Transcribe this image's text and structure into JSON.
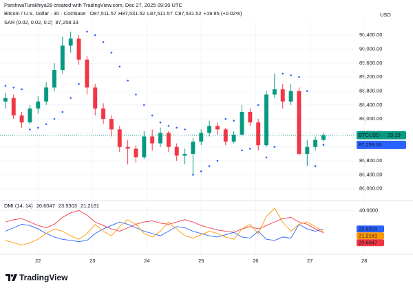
{
  "header": {
    "credit": "ParshwaTurakhiya28 created with TradingView.com, Dec 27, 2025 09:30 UTC",
    "symbol": "Bitcoin / U.S. Dollar · 30 · Coinbase",
    "ohlc": [
      "O87,511.57",
      "H87,531.52",
      "L87,511.57",
      "C87,531.52"
    ],
    "change": "+19.95 (+0.02%)",
    "currency": "USD"
  },
  "chart_data": [
    {
      "type": "candlestick",
      "x": [
        21.4,
        21.55,
        21.7,
        21.85,
        22.0,
        22.15,
        22.3,
        22.45,
        22.6,
        22.75,
        22.9,
        23.05,
        23.2,
        23.35,
        23.5,
        23.65,
        23.8,
        23.95,
        24.1,
        24.25,
        24.4,
        24.55,
        24.7,
        24.85,
        25.0,
        25.15,
        25.3,
        25.45,
        25.6,
        25.75,
        25.9,
        26.05,
        26.2,
        26.35,
        26.5,
        26.65,
        26.8,
        26.95,
        27.1,
        27.25
      ],
      "open": [
        88500,
        88600,
        88100,
        87900,
        88300,
        88500,
        88900,
        89400,
        90100,
        90300,
        89700,
        88900,
        88300,
        88000,
        87700,
        87200,
        87150,
        86900,
        87500,
        87300,
        87600,
        87200,
        86950,
        87000,
        87350,
        87600,
        87800,
        87700,
        87350,
        87550,
        88200,
        87900,
        87250,
        88700,
        88850,
        88500,
        88800,
        87000,
        87200,
        87400
      ],
      "high": [
        88750,
        88700,
        88200,
        88400,
        88650,
        89050,
        89600,
        90350,
        90500,
        90400,
        89800,
        89000,
        88450,
        88100,
        87800,
        87400,
        87250,
        87650,
        87700,
        87750,
        87650,
        87300,
        87150,
        87450,
        87700,
        87950,
        87900,
        87750,
        87650,
        88400,
        88300,
        88000,
        88800,
        89300,
        89000,
        89000,
        88900,
        87400,
        87500,
        87600
      ],
      "low": [
        88300,
        88000,
        87750,
        87850,
        88150,
        88400,
        88800,
        89300,
        89900,
        89550,
        88700,
        88100,
        87850,
        87500,
        87050,
        86700,
        86750,
        86850,
        87100,
        87200,
        87050,
        86800,
        86700,
        86400,
        87250,
        87500,
        87550,
        87250,
        87300,
        87500,
        87800,
        87100,
        87200,
        88600,
        88300,
        88400,
        86950,
        86650,
        87100,
        87350
      ],
      "close": [
        88600,
        88100,
        87900,
        88300,
        88500,
        88900,
        89400,
        90100,
        90300,
        89700,
        88900,
        88300,
        88000,
        87700,
        87200,
        87150,
        86900,
        87500,
        87300,
        87600,
        87200,
        86950,
        87000,
        87350,
        87600,
        87800,
        87700,
        87350,
        87550,
        88200,
        87900,
        87250,
        88700,
        88850,
        88500,
        88800,
        87000,
        87200,
        87400,
        87531.52
      ],
      "up_color": "#089981",
      "down_color": "#f23645",
      "ticker": "BTCUSD",
      "countdown": "29:19",
      "sar": {
        "name": "SAR (0.02, 0.02, 0.2)",
        "color": "#2962ff",
        "last_label": "87,258.33",
        "values": [
          88950,
          88900,
          88850,
          87700,
          87750,
          87850,
          88000,
          88200,
          88600,
          89000,
          90500,
          90400,
          90200,
          89900,
          89500,
          89100,
          88700,
          88400,
          88100,
          87900,
          87800,
          87750,
          87700,
          86400,
          86500,
          86650,
          86800,
          88000,
          87950,
          87100,
          87150,
          88400,
          86900,
          87200,
          89300,
          89250,
          89200,
          88800,
          86650,
          87258.33
        ]
      },
      "xlim": [
        21.3,
        27.82
      ],
      "xticks": [
        22,
        23,
        24,
        25,
        26,
        27,
        28
      ],
      "ylim": [
        85700,
        90620
      ],
      "yticks": [
        {
          "value": 86000,
          "label": "86,000.00"
        },
        {
          "value": 86400,
          "label": "86,400.00"
        },
        {
          "value": 86800,
          "label": "86,800.00"
        },
        {
          "value": 87200,
          "label": "87,200.00"
        },
        {
          "value": 87600,
          "label": "87,600.00"
        },
        {
          "value": 88000,
          "label": "88,000.00"
        },
        {
          "value": 88400,
          "label": "88,400.00"
        },
        {
          "value": 88800,
          "label": "88,800.00"
        },
        {
          "value": 89200,
          "label": "89,200.00"
        },
        {
          "value": 89600,
          "label": "89,600.00"
        },
        {
          "value": 90000,
          "label": "90,000.00"
        },
        {
          "value": 90400,
          "label": "90,400.00"
        }
      ],
      "grid": true
    },
    {
      "type": "line",
      "title": "DMI (14, 14)",
      "x": [
        21.4,
        21.55,
        21.7,
        21.85,
        22.0,
        22.15,
        22.3,
        22.45,
        22.6,
        22.75,
        22.9,
        23.05,
        23.2,
        23.35,
        23.5,
        23.65,
        23.8,
        23.95,
        24.1,
        24.25,
        24.4,
        24.55,
        24.7,
        24.85,
        25.0,
        25.15,
        25.3,
        25.45,
        25.6,
        25.75,
        25.9,
        26.05,
        26.2,
        26.35,
        26.5,
        26.65,
        26.8,
        26.95,
        27.1,
        27.25
      ],
      "series": [
        {
          "color": "#f23645",
          "last_label": "20.6047",
          "values": [
            30,
            32,
            33,
            30,
            27,
            25,
            28,
            34,
            38,
            40,
            36,
            30,
            27,
            24,
            22,
            25,
            28,
            30,
            31,
            29,
            28,
            30,
            32,
            30,
            27,
            25,
            23,
            22,
            21,
            24,
            26,
            24,
            27,
            30,
            33,
            34,
            30,
            28,
            24,
            20.6047
          ]
        },
        {
          "color": "#2962ff",
          "last_label": "23.9303",
          "values": [
            22,
            25,
            28,
            27,
            24,
            20,
            17,
            15,
            14,
            13,
            14,
            20,
            24,
            27,
            30,
            28,
            25,
            22,
            20,
            18,
            22,
            26,
            25,
            22,
            20,
            18,
            17,
            19,
            21,
            17,
            16,
            22,
            15,
            14,
            17,
            16,
            28,
            24,
            22,
            23.9303
          ]
        },
        {
          "color": "#ff9800",
          "last_label": "21.2161",
          "values": [
            14,
            12,
            10,
            12,
            15,
            20,
            24,
            22,
            18,
            15,
            20,
            28,
            22,
            18,
            26,
            32,
            28,
            20,
            17,
            22,
            30,
            24,
            18,
            16,
            19,
            22,
            20,
            17,
            15,
            24,
            28,
            20,
            35,
            42,
            30,
            22,
            28,
            30,
            26,
            21.2161
          ]
        }
      ],
      "xlim": [
        21.3,
        27.82
      ],
      "ylim": [
        5,
        45
      ],
      "yticks": [
        {
          "value": 40,
          "label": "40.0000"
        }
      ]
    }
  ],
  "footer": {
    "brand": "TradingView"
  }
}
